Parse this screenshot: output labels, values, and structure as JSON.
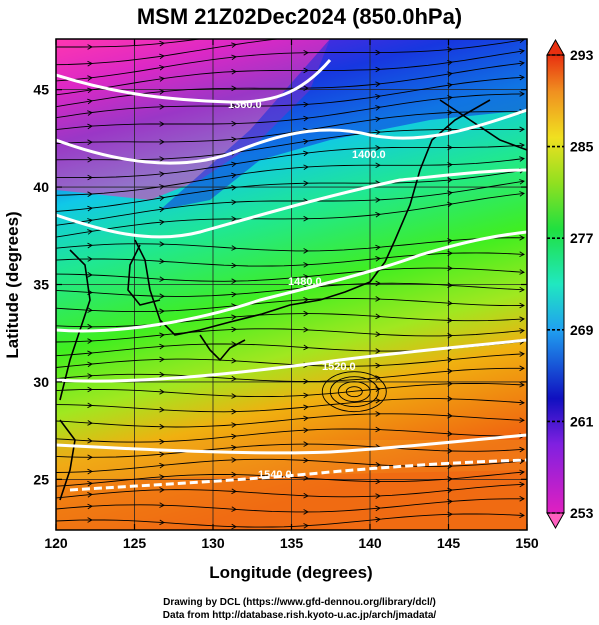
{
  "title": "MSM 21Z02Dec2024 (850.0hPa)",
  "map": {
    "x_axis": {
      "label": "Longitude (degrees)",
      "range": [
        120,
        150
      ],
      "ticks": [
        "120",
        "125",
        "130",
        "135",
        "140",
        "145",
        "150"
      ]
    },
    "y_axis": {
      "label": "Latitude  (degrees)",
      "range": [
        22.4,
        47.6
      ],
      "ticks": [
        "25",
        "30",
        "35",
        "40",
        "45"
      ]
    },
    "contour_labels": [
      "1360.0",
      "1400.0",
      "1480.0",
      "1520.0",
      "1540.0"
    ],
    "colorbar": {
      "ticks": [
        "293",
        "285",
        "277",
        "269",
        "261",
        "253"
      ],
      "min": 253,
      "max": 293
    }
  },
  "credits": {
    "line1": "Drawing by DCL (https://www.gfd-dennou.org/library/dcl/)",
    "line2": "Data from http://database.rish.kyoto-u.ac.jp/arch/jmadata/"
  }
}
